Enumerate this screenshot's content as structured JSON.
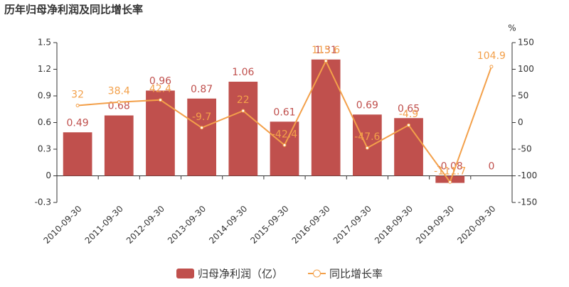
{
  "chart_data": {
    "type": "bar",
    "title": "历年归母净利润及同比增长率",
    "categories": [
      "2010-09-30",
      "2011-09-30",
      "2012-09-30",
      "2013-09-30",
      "2014-09-30",
      "2015-09-30",
      "2016-09-30",
      "2017-09-30",
      "2018-09-30",
      "2019-09-30",
      "2020-09-30"
    ],
    "series": [
      {
        "name": "归母净利润（亿）",
        "type": "bar",
        "color": "#c0504d",
        "values": [
          0.49,
          0.68,
          0.96,
          0.87,
          1.06,
          0.61,
          1.31,
          0.69,
          0.65,
          -0.08,
          0
        ]
      },
      {
        "name": "同比增长率",
        "type": "line",
        "axis": "y2",
        "color": "#f3a04a",
        "values": [
          32,
          38.4,
          42.4,
          -9.7,
          22,
          -42.4,
          115.6,
          -47.6,
          -4.9,
          -111.7,
          104.9
        ]
      }
    ],
    "ylim": [
      -0.3,
      1.5
    ],
    "yticks": [
      -0.3,
      0,
      0.3,
      0.6,
      0.9,
      1.2,
      1.5
    ],
    "y2lim": [
      -150,
      150
    ],
    "y2ticks": [
      -150,
      -100,
      -50,
      0,
      50,
      100,
      150
    ],
    "y2label": "%"
  }
}
